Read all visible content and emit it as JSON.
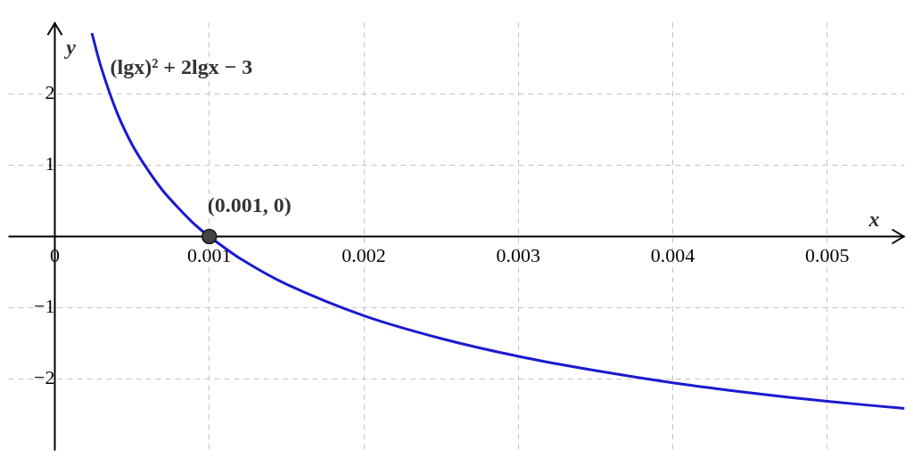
{
  "chart_data": {
    "type": "line",
    "x": [
      0.00024,
      0.0003,
      0.0004,
      0.0005,
      0.0006,
      0.0007,
      0.0008,
      0.0009,
      0.001,
      0.0012,
      0.0015,
      0.002,
      0.0025,
      0.003,
      0.0035,
      0.004,
      0.0045,
      0.005,
      0.0055
    ],
    "values": [
      2.85,
      2.37,
      1.75,
      1.29,
      0.94,
      0.64,
      0.4,
      0.18,
      0,
      -0.31,
      -0.67,
      -1.11,
      -1.43,
      -1.68,
      -1.88,
      -2.05,
      -2.19,
      -2.31,
      -2.41
    ],
    "color": "#1a1ad0",
    "annotations": [
      {
        "text": "(lgx)² + 2lgx − 3"
      }
    ],
    "points": [
      {
        "x": 0.001,
        "y": 0,
        "label": "(0.001, 0)"
      }
    ],
    "x_label": "x",
    "y_label": "y",
    "xlim": [
      -0.0003,
      0.0055
    ],
    "ylim": [
      -3,
      3
    ],
    "xticks": [
      0,
      0.001,
      0.002,
      0.003,
      0.004,
      0.005
    ],
    "yticks": [
      {
        "value": -2,
        "label": "−2"
      },
      {
        "value": -1,
        "label": "−1"
      },
      1,
      2
    ],
    "grid": true
  }
}
